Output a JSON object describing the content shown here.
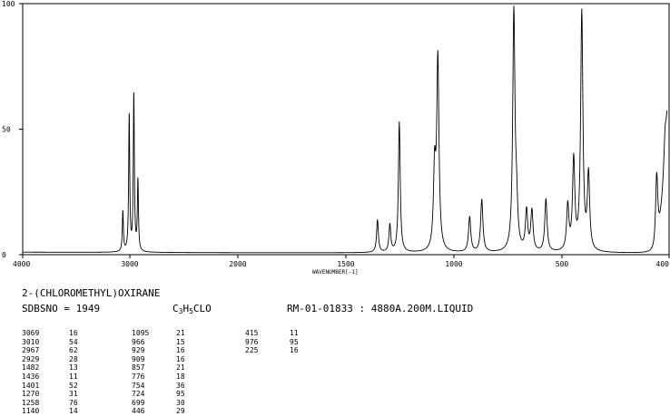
{
  "compound": "2-(CHLOROMETHYL)OXIRANE",
  "sdbs_label": "SDBSNO = 1949",
  "formula": {
    "C": "C",
    "c_sub": "3",
    "H": "H",
    "h_sub": "5",
    "rest": "CLO"
  },
  "record": "RM-01-01833 : 4880A.200M.LIQUID",
  "chart_data": {
    "type": "line",
    "xlabel": "WAVENUMBER[-1]",
    "ylabel": "",
    "xlim": [
      4000,
      400
    ],
    "ylim": [
      0,
      100
    ],
    "x_ticks": [
      "4000",
      "3000",
      "2000",
      "1500",
      "1000",
      "500",
      "400"
    ],
    "y_ticks": [
      "0",
      "50",
      "100"
    ],
    "grid": false,
    "peaks": [
      {
        "x": 3069,
        "y": 16
      },
      {
        "x": 3010,
        "y": 54
      },
      {
        "x": 2967,
        "y": 62
      },
      {
        "x": 2929,
        "y": 28
      },
      {
        "x": 1482,
        "y": 13
      },
      {
        "x": 1436,
        "y": 11
      },
      {
        "x": 1401,
        "y": 52
      },
      {
        "x": 1270,
        "y": 31
      },
      {
        "x": 1258,
        "y": 76
      },
      {
        "x": 1140,
        "y": 14
      },
      {
        "x": 1095,
        "y": 21
      },
      {
        "x": 966,
        "y": 15
      },
      {
        "x": 929,
        "y": 16
      },
      {
        "x": 909,
        "y": 16
      },
      {
        "x": 857,
        "y": 21
      },
      {
        "x": 776,
        "y": 18
      },
      {
        "x": 754,
        "y": 36
      },
      {
        "x": 724,
        "y": 95
      },
      {
        "x": 699,
        "y": 30
      },
      {
        "x": 446,
        "y": 29
      },
      {
        "x": 415,
        "y": 11
      },
      {
        "x": 976,
        "y": 95
      },
      {
        "x": 225,
        "y": 16
      }
    ]
  },
  "peak_table": [
    [
      [
        "3069",
        "16"
      ],
      [
        "1095",
        "21"
      ],
      [
        "415",
        "11"
      ]
    ],
    [
      [
        "3010",
        "54"
      ],
      [
        "966",
        "15"
      ],
      [
        "976",
        "95"
      ]
    ],
    [
      [
        "2967",
        "62"
      ],
      [
        "929",
        "16"
      ],
      [
        "225",
        "16"
      ]
    ],
    [
      [
        "2929",
        "28"
      ],
      [
        "909",
        "16"
      ]
    ],
    [
      [
        "1482",
        "13"
      ],
      [
        "857",
        "21"
      ]
    ],
    [
      [
        "1436",
        "11"
      ],
      [
        "776",
        "18"
      ]
    ],
    [
      [
        "1401",
        "52"
      ],
      [
        "754",
        "36"
      ]
    ],
    [
      [
        "1270",
        "31"
      ],
      [
        "724",
        "95"
      ]
    ],
    [
      [
        "1258",
        "76"
      ],
      [
        "699",
        "30"
      ]
    ],
    [
      [
        "1140",
        "14"
      ],
      [
        "446",
        "29"
      ]
    ]
  ]
}
